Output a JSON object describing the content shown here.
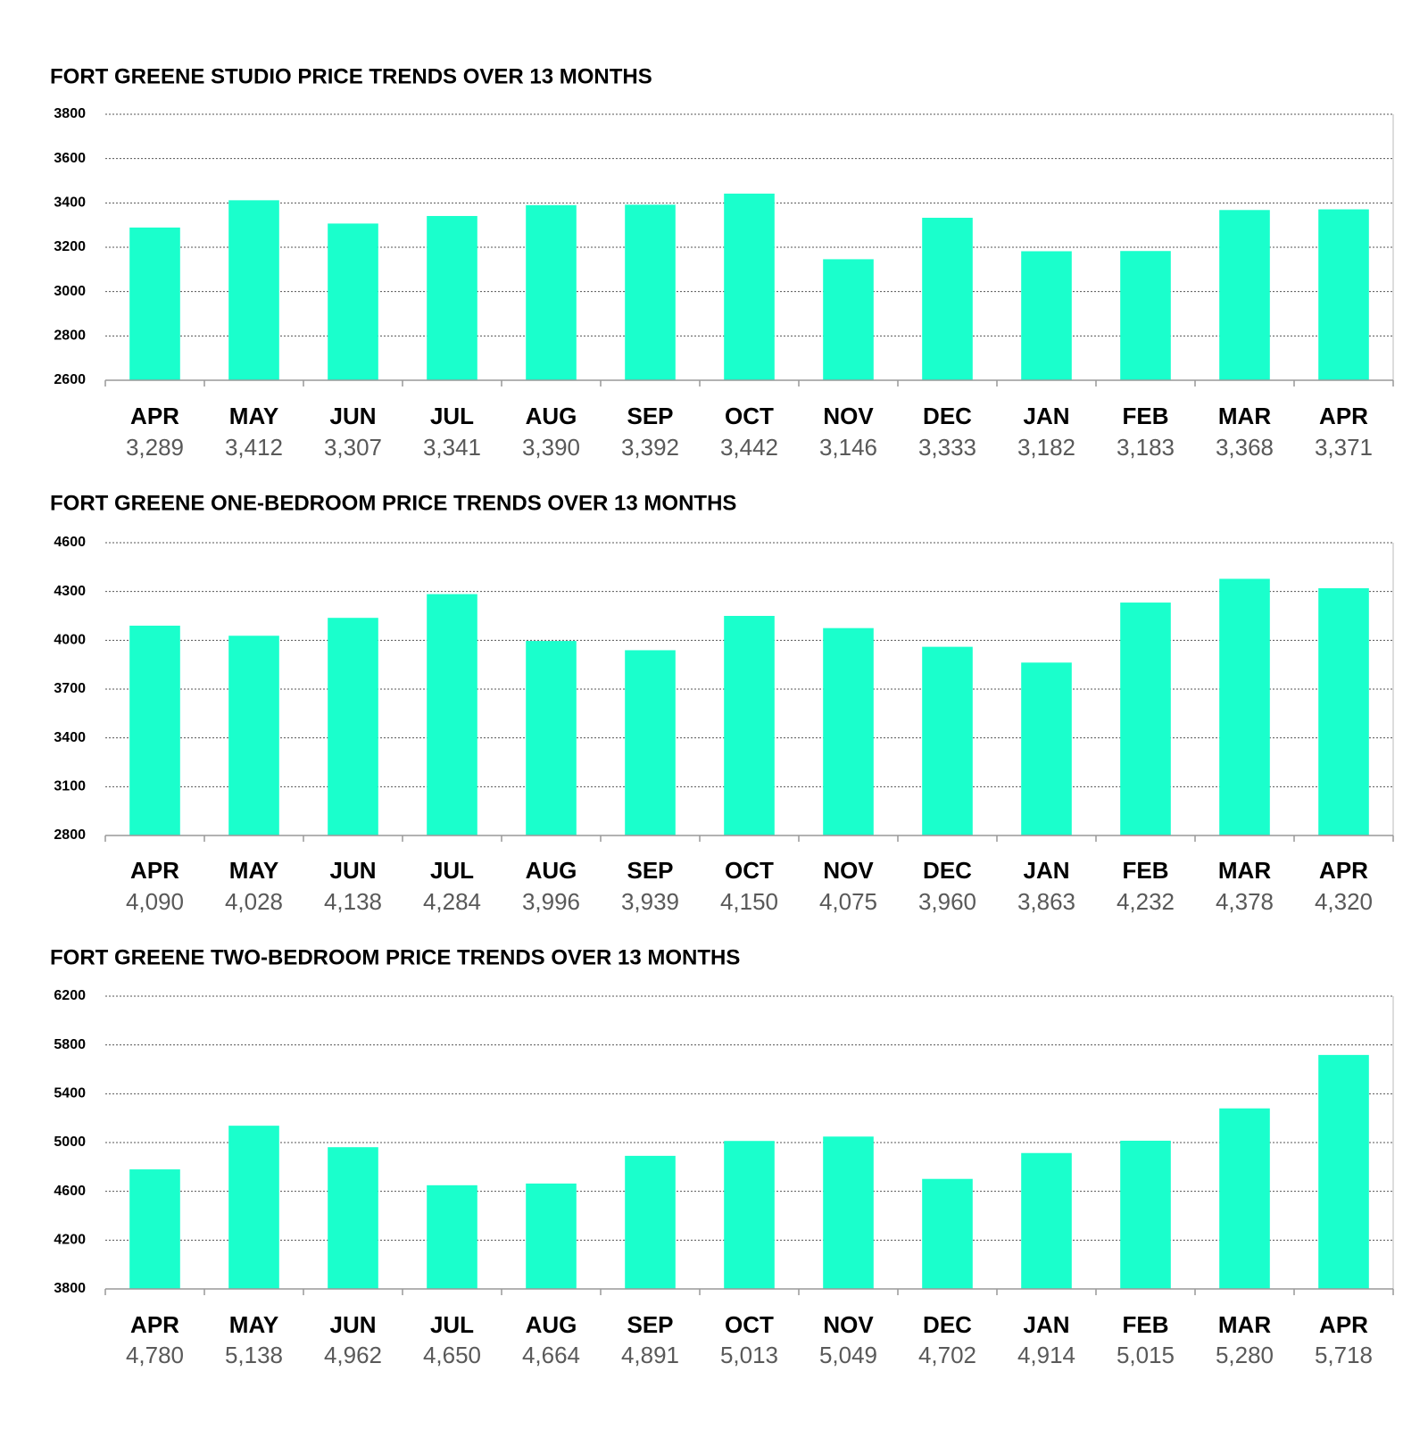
{
  "chart_data": [
    {
      "type": "bar",
      "title": "FORT GREENE STUDIO PRICE TRENDS OVER 13 MONTHS",
      "categories": [
        "APR",
        "MAY",
        "JUN",
        "JUL",
        "AUG",
        "SEP",
        "OCT",
        "NOV",
        "DEC",
        "JAN",
        "FEB",
        "MAR",
        "APR"
      ],
      "values": [
        3289,
        3412,
        3307,
        3341,
        3390,
        3392,
        3442,
        3146,
        3333,
        3182,
        3183,
        3368,
        3371
      ],
      "value_labels": [
        "3,289",
        "3,412",
        "3,307",
        "3,341",
        "3,390",
        "3,392",
        "3,442",
        "3,146",
        "3,333",
        "3,182",
        "3,183",
        "3,368",
        "3,371"
      ],
      "color": "#1affcc",
      "ylim": [
        2600,
        3800
      ],
      "yticks": [
        2600,
        2800,
        3000,
        3200,
        3400,
        3600,
        3800
      ],
      "grid": true
    },
    {
      "type": "bar",
      "title": "FORT GREENE ONE-BEDROOM PRICE TRENDS OVER 13 MONTHS",
      "categories": [
        "APR",
        "MAY",
        "JUN",
        "JUL",
        "AUG",
        "SEP",
        "OCT",
        "NOV",
        "DEC",
        "JAN",
        "FEB",
        "MAR",
        "APR"
      ],
      "values": [
        4090,
        4028,
        4138,
        4284,
        3996,
        3939,
        4150,
        4075,
        3960,
        3863,
        4232,
        4378,
        4320
      ],
      "value_labels": [
        "4,090",
        "4,028",
        "4,138",
        "4,284",
        "3,996",
        "3,939",
        "4,150",
        "4,075",
        "3,960",
        "3,863",
        "4,232",
        "4,378",
        "4,320"
      ],
      "color": "#1affcc",
      "ylim": [
        2800,
        4600
      ],
      "yticks": [
        2800,
        3100,
        3400,
        3700,
        4000,
        4300,
        4600
      ],
      "grid": true
    },
    {
      "type": "bar",
      "title": "FORT GREENE TWO-BEDROOM PRICE TRENDS OVER 13 MONTHS",
      "categories": [
        "APR",
        "MAY",
        "JUN",
        "JUL",
        "AUG",
        "SEP",
        "OCT",
        "NOV",
        "DEC",
        "JAN",
        "FEB",
        "MAR",
        "APR"
      ],
      "values": [
        4780,
        5138,
        4962,
        4650,
        4664,
        4891,
        5013,
        5049,
        4702,
        4914,
        5015,
        5280,
        5718
      ],
      "value_labels": [
        "4,780",
        "5,138",
        "4,962",
        "4,650",
        "4,664",
        "4,891",
        "5,013",
        "5,049",
        "4,702",
        "4,914",
        "5,015",
        "5,280",
        "5,718"
      ],
      "color": "#1affcc",
      "ylim": [
        3800,
        6200
      ],
      "yticks": [
        3800,
        4200,
        4600,
        5000,
        5400,
        5800,
        6200
      ],
      "grid": true
    }
  ]
}
